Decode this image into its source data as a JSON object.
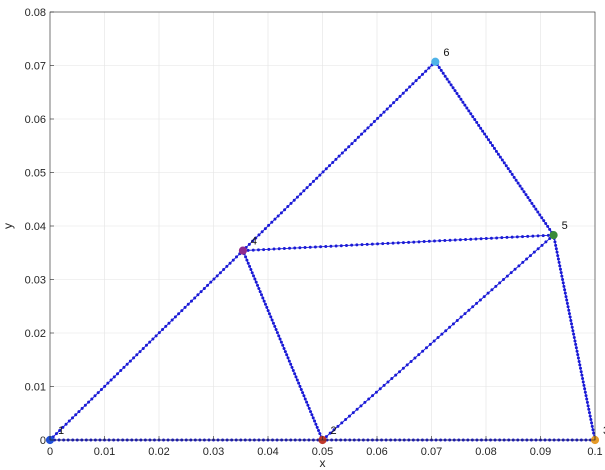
{
  "chart_data": {
    "type": "scatter",
    "title": "",
    "xlabel": "x",
    "ylabel": "y",
    "xlim": [
      0,
      0.1
    ],
    "ylim": [
      0,
      0.08
    ],
    "xticks": [
      "0",
      "0.01",
      "0.02",
      "0.03",
      "0.04",
      "0.05",
      "0.06",
      "0.07",
      "0.08",
      "0.09",
      "0.1"
    ],
    "yticks": [
      "0",
      "0.01",
      "0.02",
      "0.03",
      "0.04",
      "0.05",
      "0.06",
      "0.07",
      "0.08"
    ],
    "grid": true,
    "nodes": [
      {
        "label": "1",
        "x": 0.0,
        "y": 0.0,
        "color": "#1f4fd8"
      },
      {
        "label": "2",
        "x": 0.05,
        "y": 0.0,
        "color": "#c0392b"
      },
      {
        "label": "3",
        "x": 0.1,
        "y": 0.0,
        "color": "#e69b2a"
      },
      {
        "label": "4",
        "x": 0.0354,
        "y": 0.0354,
        "color": "#8e2a8e"
      },
      {
        "label": "5",
        "x": 0.0924,
        "y": 0.0383,
        "color": "#3a8a3a"
      },
      {
        "label": "6",
        "x": 0.0707,
        "y": 0.0707,
        "color": "#4fb3e8"
      }
    ],
    "edges": [
      [
        1,
        2
      ],
      [
        2,
        3
      ],
      [
        1,
        4
      ],
      [
        4,
        6
      ],
      [
        6,
        5
      ],
      [
        5,
        3
      ],
      [
        4,
        5
      ],
      [
        4,
        2
      ],
      [
        2,
        5
      ]
    ],
    "edge_color": "#1a1ad6",
    "points_per_edge": 60
  }
}
